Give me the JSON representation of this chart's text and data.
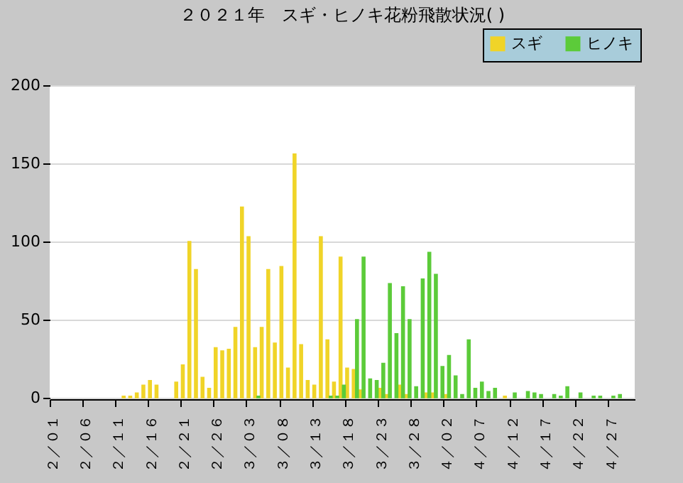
{
  "chart_data": {
    "type": "bar",
    "title": "２０２１年　スギ・ヒノキ花粉飛散状況( )",
    "categories": [
      "２／０１",
      null,
      null,
      null,
      null,
      "２／０６",
      null,
      null,
      null,
      null,
      "２／１１",
      null,
      null,
      null,
      null,
      "２／１６",
      null,
      null,
      null,
      null,
      "２／２１",
      null,
      null,
      null,
      null,
      "２／２６",
      null,
      null,
      null,
      null,
      "３／０３",
      null,
      null,
      null,
      null,
      "３／０８",
      null,
      null,
      null,
      null,
      "３／１３",
      null,
      null,
      null,
      null,
      "３／１８",
      null,
      null,
      null,
      null,
      "３／２３",
      null,
      null,
      null,
      null,
      "３／２８",
      null,
      null,
      null,
      null,
      "４／０２",
      null,
      null,
      null,
      null,
      "４／０７",
      null,
      null,
      null,
      null,
      "４／１２",
      null,
      null,
      null,
      null,
      "４／１７",
      null,
      null,
      null,
      null,
      "４／２２",
      null,
      null,
      null,
      null,
      "４／２７",
      null,
      null,
      null
    ],
    "series": [
      {
        "name": "スギ",
        "color": "#f0d428",
        "values": [
          null,
          null,
          null,
          null,
          null,
          null,
          null,
          null,
          null,
          null,
          null,
          1,
          1,
          3,
          8,
          11,
          8,
          null,
          null,
          10,
          21,
          100,
          82,
          13,
          6,
          32,
          30,
          31,
          45,
          122,
          103,
          32,
          45,
          82,
          35,
          84,
          19,
          156,
          34,
          11,
          8,
          103,
          37,
          10,
          90,
          19,
          18,
          5,
          null,
          null,
          6,
          2,
          null,
          8,
          2,
          null,
          null,
          3,
          3,
          null,
          2,
          null,
          null,
          null,
          null,
          null,
          null,
          null,
          null,
          1,
          null,
          null,
          null,
          null,
          null,
          null,
          null,
          null,
          null,
          null,
          null,
          null,
          null,
          null,
          null,
          null,
          null,
          null,
          null
        ]
      },
      {
        "name": "ヒノキ",
        "color": "#5ccb3a",
        "values": [
          null,
          null,
          null,
          null,
          null,
          null,
          null,
          null,
          null,
          null,
          null,
          null,
          null,
          null,
          null,
          null,
          null,
          null,
          null,
          null,
          null,
          null,
          null,
          null,
          null,
          null,
          null,
          null,
          null,
          null,
          null,
          1,
          null,
          null,
          null,
          null,
          null,
          null,
          null,
          null,
          null,
          null,
          1,
          1,
          8,
          null,
          50,
          90,
          12,
          11,
          22,
          73,
          41,
          71,
          50,
          7,
          76,
          93,
          79,
          20,
          27,
          14,
          2,
          37,
          6,
          10,
          4,
          6,
          null,
          null,
          3,
          null,
          4,
          3,
          2,
          null,
          2,
          1,
          7,
          null,
          3,
          null,
          1,
          1,
          null,
          1,
          2,
          null,
          null
        ]
      }
    ],
    "ylim": [
      0,
      200
    ],
    "yticks": [
      0,
      50,
      100,
      150,
      200
    ],
    "grid": "y",
    "legend": "top right"
  }
}
